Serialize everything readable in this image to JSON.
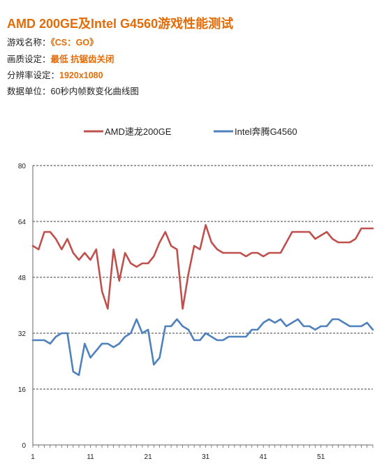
{
  "page": {
    "title": "AMD 200GE及Intel G4560游戏性能测试",
    "info": [
      {
        "key": "游戏名称：",
        "value": "《CS：GO》",
        "highlight": true
      },
      {
        "key": "画质设定：",
        "value": "最低  抗锯齿关闭",
        "highlight": true
      },
      {
        "key": "分辨率设定：",
        "value": "1920x1080",
        "highlight": true
      },
      {
        "key": "数据单位：",
        "value": "60秒内帧数变化曲线图",
        "highlight": false
      }
    ]
  },
  "colors": {
    "accent": "#e36c09",
    "amd": "#c0504d",
    "intel": "#4f81bd"
  },
  "chart_data": {
    "type": "line",
    "title": "",
    "xlabel": "",
    "ylabel": "",
    "x": [
      1,
      2,
      3,
      4,
      5,
      6,
      7,
      8,
      9,
      10,
      11,
      12,
      13,
      14,
      15,
      16,
      17,
      18,
      19,
      20,
      21,
      22,
      23,
      24,
      25,
      26,
      27,
      28,
      29,
      30,
      31,
      32,
      33,
      34,
      35,
      36,
      37,
      38,
      39,
      40,
      41,
      42,
      43,
      44,
      45,
      46,
      47,
      48,
      49,
      50,
      51,
      52,
      53,
      54,
      55,
      56,
      57,
      58,
      59,
      60
    ],
    "xticks": [
      1,
      11,
      21,
      31,
      41,
      51
    ],
    "yticks": [
      0,
      16,
      32,
      48,
      64,
      80
    ],
    "ylim": [
      0,
      80
    ],
    "xlim": [
      1,
      60
    ],
    "grid": "horizontal-dashed",
    "legend_position": "top",
    "series": [
      {
        "name": "AMD速龙200GE",
        "color": "#c0504d",
        "values": [
          57,
          56,
          61,
          61,
          59,
          56,
          59,
          55,
          53,
          55,
          53,
          56,
          44,
          39,
          56,
          47,
          55,
          52,
          51,
          52,
          52,
          54,
          58,
          61,
          57,
          56,
          39,
          49,
          57,
          56,
          63,
          58,
          56,
          55,
          55,
          55,
          55,
          54,
          55,
          55,
          54,
          55,
          55,
          55,
          58,
          61,
          61,
          61,
          61,
          59,
          60,
          61,
          59,
          58,
          58,
          58,
          59,
          62,
          62,
          62
        ]
      },
      {
        "name": "Intel奔腾G4560",
        "color": "#4f81bd",
        "values": [
          30,
          30,
          30,
          29,
          31,
          32,
          32,
          21,
          20,
          29,
          25,
          27,
          29,
          29,
          28,
          29,
          31,
          32,
          36,
          32,
          33,
          23,
          25,
          34,
          34,
          36,
          34,
          33,
          30,
          30,
          32,
          31,
          30,
          30,
          31,
          31,
          31,
          31,
          33,
          33,
          35,
          36,
          35,
          36,
          34,
          35,
          36,
          34,
          34,
          33,
          34,
          34,
          36,
          36,
          35,
          34,
          34,
          34,
          35,
          33
        ]
      }
    ]
  }
}
